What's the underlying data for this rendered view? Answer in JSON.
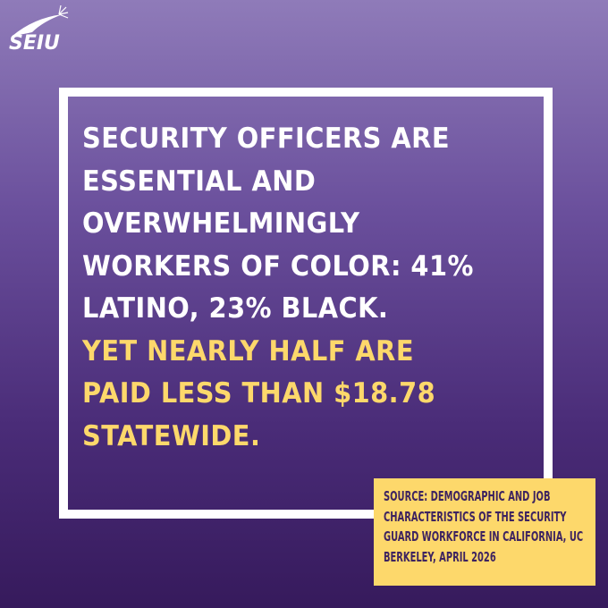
{
  "logo": {
    "text": "SEIU"
  },
  "headline": {
    "white_lines": [
      "SECURITY OFFICERS ARE",
      "ESSENTIAL AND",
      "OVERWHELMINGLY",
      "WORKERS OF COLOR: 41%",
      "LATINO, 23% BLACK."
    ],
    "yellow_lines": [
      "YET NEARLY HALF ARE",
      "PAID LESS THAN $18.78",
      "STATEWIDE."
    ]
  },
  "source": {
    "lines": [
      "SOURCE: DEMOGRAPHIC AND JOB",
      "CHARACTERISTICS OF THE SECURITY",
      "GUARD WORKFORCE IN CALIFORNIA, UC",
      "BERKELEY, APRIL 2026"
    ]
  }
}
